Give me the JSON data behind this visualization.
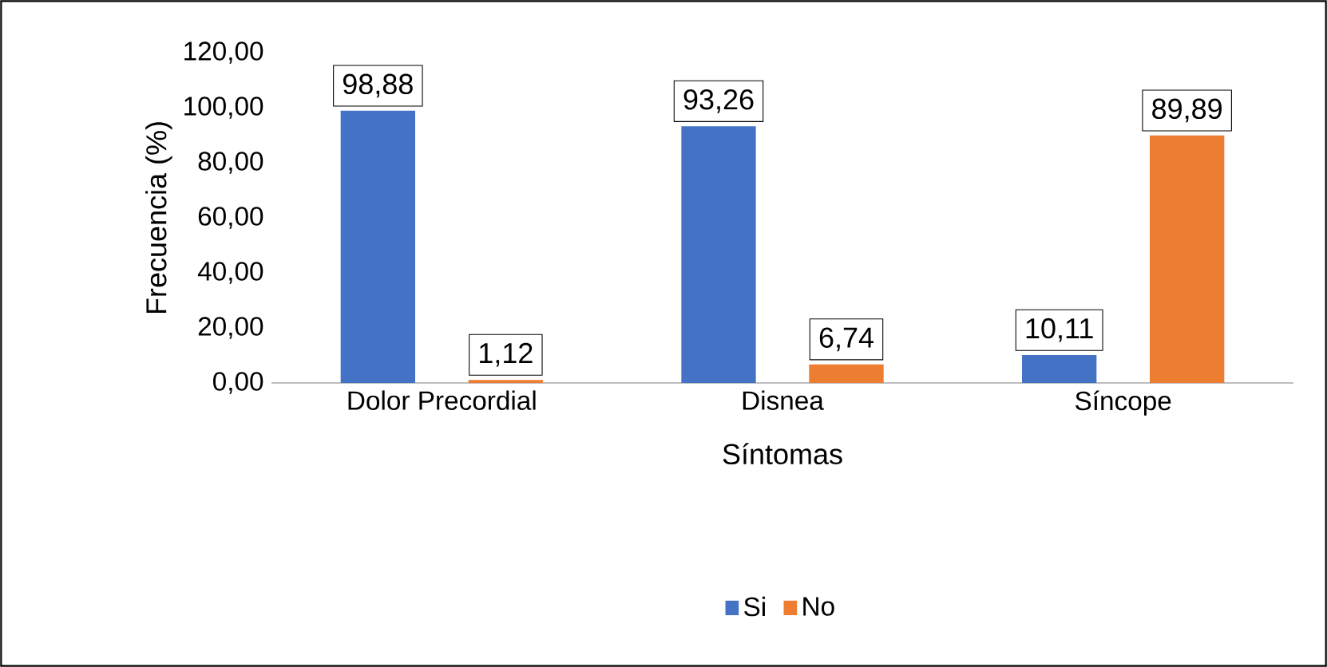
{
  "chart_data": {
    "type": "bar",
    "xlabel": "Síntomas",
    "ylabel": "Frecuencia (%)",
    "categories": [
      "Dolor Precordial",
      "Disnea",
      "Síncope"
    ],
    "series": [
      {
        "name": "Si",
        "color": "#4472c4",
        "values": [
          98.88,
          93.26,
          10.11
        ],
        "value_labels": [
          "98,88",
          "93,26",
          "10,11"
        ]
      },
      {
        "name": "No",
        "color": "#ed7d31",
        "values": [
          1.12,
          6.74,
          89.89
        ],
        "value_labels": [
          "1,12",
          "6,74",
          "89,89"
        ]
      }
    ],
    "ylim": [
      0,
      120
    ],
    "yticks": [
      {
        "value": 0,
        "label": "0,00"
      },
      {
        "value": 20,
        "label": "20,00"
      },
      {
        "value": 40,
        "label": "40,00"
      },
      {
        "value": 60,
        "label": "60,00"
      },
      {
        "value": 80,
        "label": "80,00"
      },
      {
        "value": 100,
        "label": "100,00"
      },
      {
        "value": 120,
        "label": "120,00"
      }
    ],
    "grid": false,
    "legend": "bottom"
  }
}
